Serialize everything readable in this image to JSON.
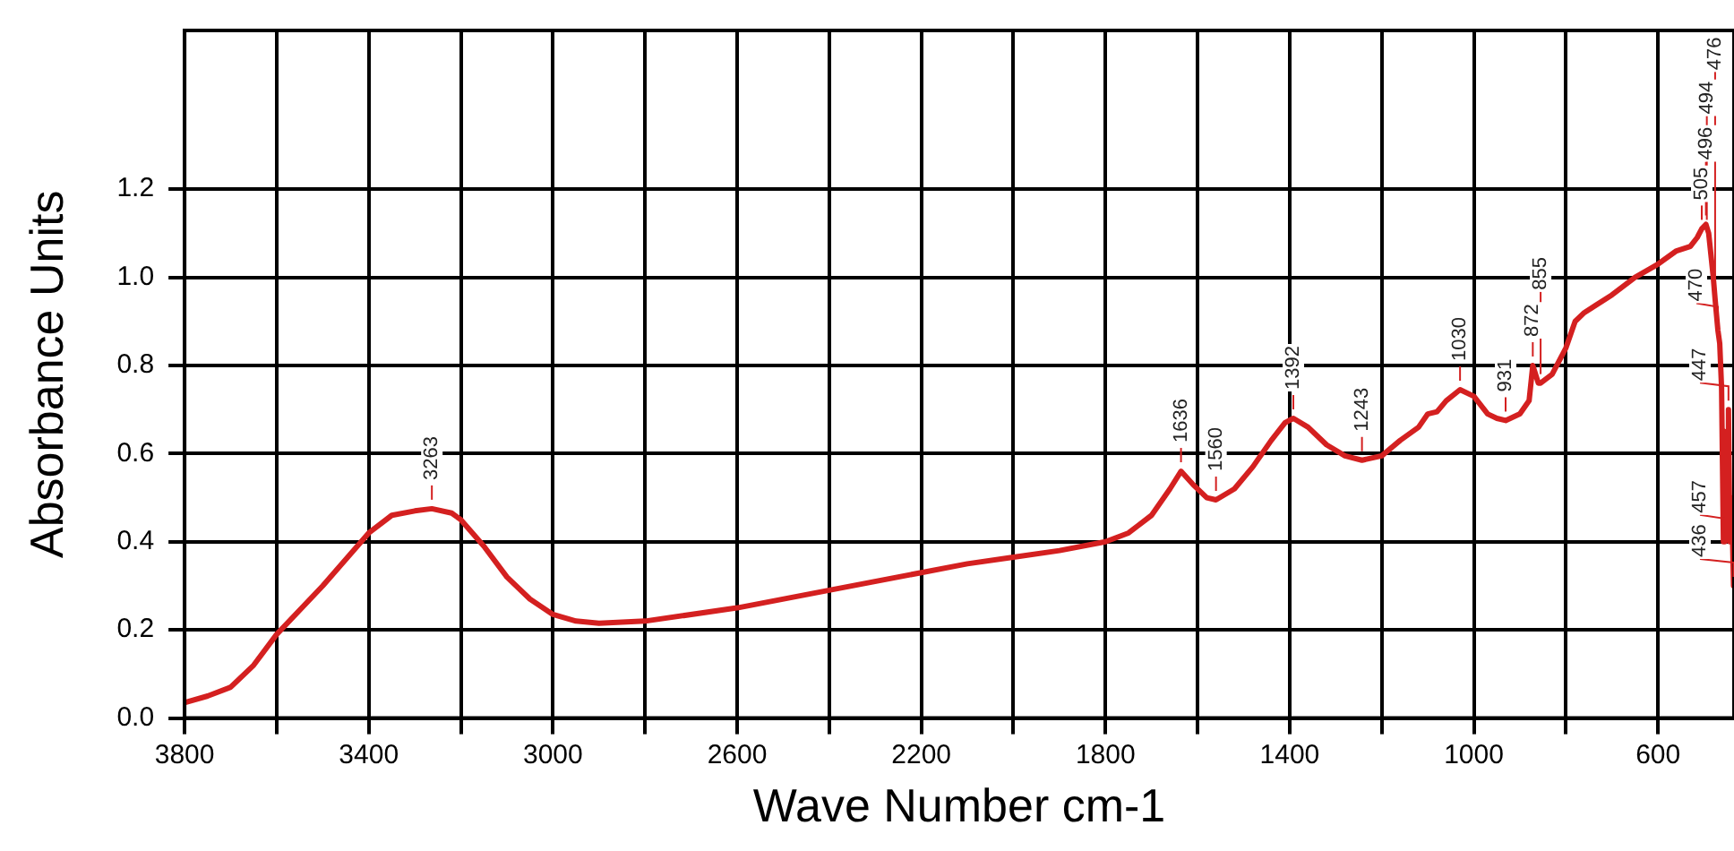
{
  "chart_data": {
    "type": "line",
    "xlabel": "Wave Number cm-1",
    "ylabel": "Absorbance Units",
    "x": [
      3800,
      3750,
      3700,
      3650,
      3600,
      3500,
      3400,
      3350,
      3300,
      3263,
      3220,
      3200,
      3150,
      3100,
      3050,
      3000,
      2950,
      2900,
      2800,
      2600,
      2400,
      2200,
      2100,
      2000,
      1900,
      1800,
      1750,
      1700,
      1660,
      1636,
      1610,
      1580,
      1560,
      1520,
      1480,
      1440,
      1410,
      1392,
      1360,
      1320,
      1280,
      1243,
      1200,
      1160,
      1120,
      1100,
      1080,
      1060,
      1030,
      1000,
      970,
      950,
      931,
      900,
      880,
      872,
      860,
      855,
      830,
      800,
      780,
      760,
      700,
      650,
      600,
      560,
      530,
      515,
      505,
      496,
      490,
      480,
      476,
      470,
      466,
      462,
      458,
      455,
      450,
      447,
      444,
      440,
      436
    ],
    "values": [
      0.035,
      0.05,
      0.07,
      0.12,
      0.19,
      0.3,
      0.42,
      0.46,
      0.47,
      0.475,
      0.465,
      0.45,
      0.39,
      0.32,
      0.27,
      0.235,
      0.22,
      0.215,
      0.22,
      0.25,
      0.29,
      0.33,
      0.35,
      0.365,
      0.38,
      0.4,
      0.42,
      0.46,
      0.52,
      0.56,
      0.53,
      0.5,
      0.495,
      0.52,
      0.57,
      0.63,
      0.67,
      0.68,
      0.66,
      0.62,
      0.595,
      0.585,
      0.595,
      0.63,
      0.66,
      0.69,
      0.695,
      0.72,
      0.745,
      0.73,
      0.69,
      0.68,
      0.675,
      0.69,
      0.72,
      0.8,
      0.76,
      0.76,
      0.78,
      0.84,
      0.9,
      0.92,
      0.96,
      1.0,
      1.03,
      1.06,
      1.07,
      1.09,
      1.11,
      1.12,
      1.1,
      1.0,
      0.95,
      0.88,
      0.85,
      0.75,
      0.4,
      0.65,
      0.55,
      0.7,
      0.4,
      0.5,
      0.3
    ],
    "color": "#d42020",
    "xlim": [
      3800,
      435
    ],
    "ylim": [
      0,
      1.56
    ],
    "xticks": [
      3800,
      {
        "value": 3600,
        "label": null
      },
      3400,
      {
        "value": 3200,
        "label": null
      },
      3000,
      {
        "value": 2800,
        "label": null
      },
      2600,
      {
        "value": 2400,
        "label": null
      },
      2200,
      {
        "value": 2000,
        "label": null
      },
      1800,
      {
        "value": 1600,
        "label": null
      },
      1400,
      {
        "value": 1200,
        "label": null
      },
      1000,
      {
        "value": 800,
        "label": null
      },
      600
    ],
    "yticks": [
      {
        "value": 0,
        "label": "0.0"
      },
      {
        "value": 0.2,
        "label": "0.2"
      },
      {
        "value": 0.4,
        "label": "0.4"
      },
      {
        "value": 0.6,
        "label": "0.6"
      },
      {
        "value": 0.8,
        "label": "0.8"
      },
      {
        "value": 1,
        "label": "1.0"
      },
      {
        "value": 1.2,
        "label": "1.2"
      }
    ],
    "grid": true,
    "legend": false,
    "marker": "none",
    "annotations": [
      {
        "text": "3263",
        "x": 3263,
        "y": 0.475
      },
      {
        "text": "1636",
        "x": 1636,
        "y": 0.56
      },
      {
        "text": "1560",
        "x": 1560,
        "y": 0.495
      },
      {
        "text": "1392",
        "x": 1392,
        "y": 0.68
      },
      {
        "text": "1243",
        "x": 1243,
        "y": 0.585
      },
      {
        "text": "1030",
        "x": 1030,
        "y": 0.745
      },
      {
        "text": "931",
        "x": 931,
        "y": 0.675
      },
      {
        "text": "872",
        "x": 872,
        "y": 0.8
      },
      {
        "text": "855",
        "x": 855,
        "y": 0.76
      },
      {
        "text": "505",
        "x": 505,
        "y": 1.11
      },
      {
        "text": "496",
        "x": 496,
        "y": 1.12
      },
      {
        "text": "494",
        "x": 494,
        "y": 1.11
      },
      {
        "text": "476",
        "x": 476,
        "y": 0.95
      },
      {
        "text": "470",
        "x": 470,
        "y": 0.88
      },
      {
        "text": "457",
        "x": 457,
        "y": 0.4
      },
      {
        "text": "447",
        "x": 447,
        "y": 0.7
      },
      {
        "text": "436",
        "x": 436,
        "y": 0.3
      }
    ]
  }
}
